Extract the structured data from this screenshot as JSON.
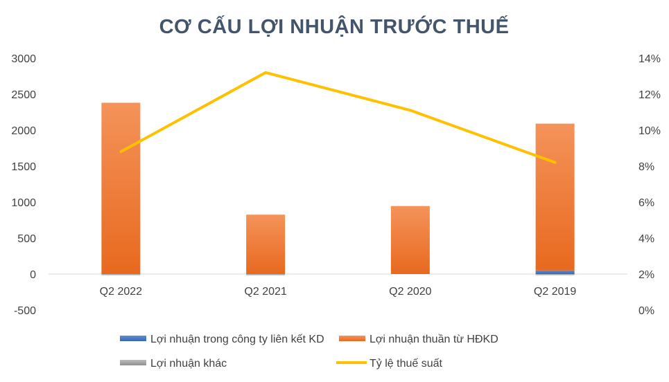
{
  "chart_data": {
    "type": "bar",
    "title": "CƠ CẤU LỢI NHUẬN TRƯỚC THUẾ",
    "categories": [
      "Q2 2022",
      "Q2 2021",
      "Q2 2020",
      "Q2 2019"
    ],
    "series": [
      {
        "name": "Lợi nhuận trong công ty liên kết KD",
        "type": "stacked-bar",
        "axis": "left",
        "color": "#4472c4",
        "values": [
          0,
          0,
          0,
          50
        ]
      },
      {
        "name": "Lợi nhuận thuần từ HĐKD",
        "type": "stacked-bar",
        "axis": "left",
        "color": "#ed7d31",
        "values": [
          2380,
          825,
          945,
          2040
        ]
      },
      {
        "name": "Lợi nhuận khác",
        "type": "stacked-bar",
        "axis": "left",
        "color": "#a5a5a5",
        "values": [
          -5,
          -15,
          0,
          -10
        ]
      },
      {
        "name": "Tỷ lệ thuế suất",
        "type": "line",
        "axis": "right",
        "color": "#ffc000",
        "values": [
          8.8,
          13.2,
          11.1,
          8.2
        ]
      }
    ],
    "y_left": {
      "min": -500,
      "max": 3000,
      "step": 500,
      "tick_labels": [
        "-500",
        "0",
        "500",
        "1000",
        "1500",
        "2000",
        "2500",
        "3000"
      ]
    },
    "y_right": {
      "min": 0,
      "max": 14,
      "step": 2,
      "tick_labels": [
        "0%",
        "2%",
        "4%",
        "6%",
        "8%",
        "10%",
        "12%",
        "14%"
      ]
    },
    "grid": false,
    "legend_position": "bottom"
  }
}
